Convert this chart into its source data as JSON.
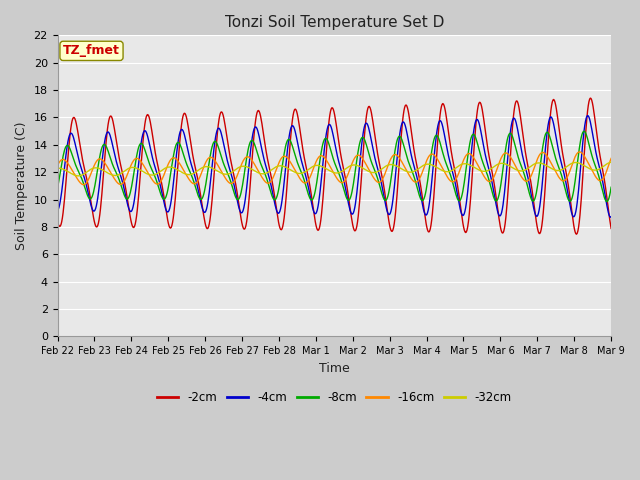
{
  "title": "Tonzi Soil Temperature Set D",
  "xlabel": "Time",
  "ylabel": "Soil Temperature (C)",
  "ylim": [
    0,
    22
  ],
  "yticks": [
    0,
    2,
    4,
    6,
    8,
    10,
    12,
    14,
    16,
    18,
    20,
    22
  ],
  "background_color": "#cccccc",
  "plot_bg_color": "#e8e8e8",
  "grid_color": "#ffffff",
  "series_colors": {
    "-2cm": "#cc0000",
    "-4cm": "#0000cc",
    "-8cm": "#00aa00",
    "-16cm": "#ff8800",
    "-32cm": "#cccc00"
  },
  "legend_labels": [
    "-2cm",
    "-4cm",
    "-8cm",
    "-16cm",
    "-32cm"
  ],
  "annotation_text": "TZ_fmet",
  "annotation_color": "#cc0000",
  "annotation_bg": "#ffffcc",
  "n_points": 800,
  "x_ticks_labels": [
    "Feb 22",
    "Feb 23",
    "Feb 24",
    "Feb 25",
    "Feb 26",
    "Feb 27",
    "Feb 28",
    "Mar 1",
    "Mar 2",
    "Mar 3",
    "Mar 4",
    "Mar 5",
    "Mar 6",
    "Mar 7",
    "Mar 8",
    "Mar 9"
  ],
  "line_width": 1.0
}
